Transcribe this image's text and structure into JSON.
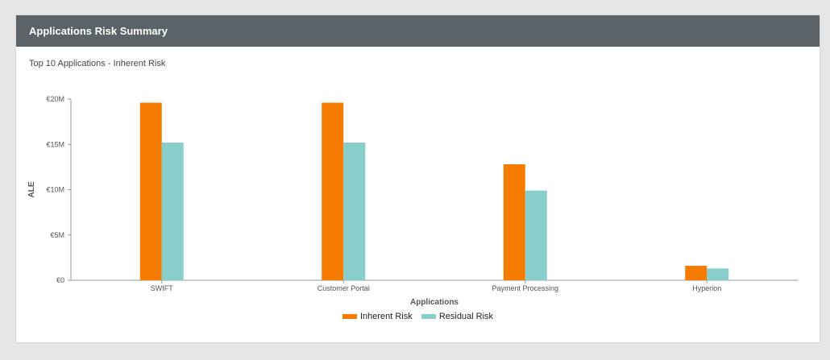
{
  "panel": {
    "title": "Applications Risk Summary"
  },
  "chart_data": {
    "type": "bar",
    "title": "Top 10 Applications - Inherent Risk",
    "xlabel": "Applications",
    "ylabel": "ALE",
    "categories": [
      "SWIFT",
      "Customer Portal",
      "Payment Processing",
      "Hyperion"
    ],
    "series": [
      {
        "name": "Inherent Risk",
        "color": "#f57c00",
        "values": [
          19.6,
          19.6,
          12.8,
          1.6
        ]
      },
      {
        "name": "Residual Risk",
        "color": "#88cfcb",
        "values": [
          15.2,
          15.2,
          9.9,
          1.3
        ]
      }
    ],
    "ylim": [
      0,
      20
    ],
    "yticks": [
      0,
      5,
      10,
      15,
      20
    ],
    "ytick_labels": [
      "€0",
      "€5M",
      "€10M",
      "€15M",
      "€20M"
    ],
    "grid": false,
    "legend": "bottom-center"
  }
}
